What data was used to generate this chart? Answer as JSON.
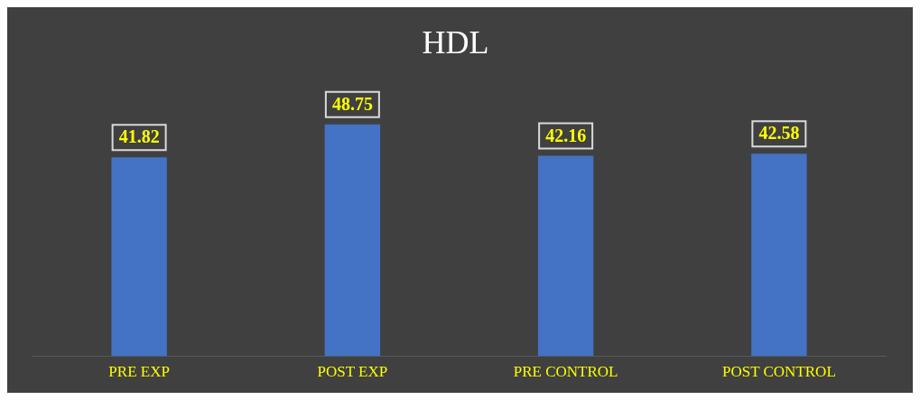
{
  "chart_data": {
    "type": "bar",
    "title": "HDL",
    "categories": [
      "PRE EXP",
      "POST EXP",
      "PRE CONTROL",
      "POST CONTROL"
    ],
    "values": [
      41.82,
      48.75,
      42.16,
      42.58
    ],
    "color": "#4472c4",
    "tick_labels": "x",
    "grid": false,
    "data_labels": true
  }
}
